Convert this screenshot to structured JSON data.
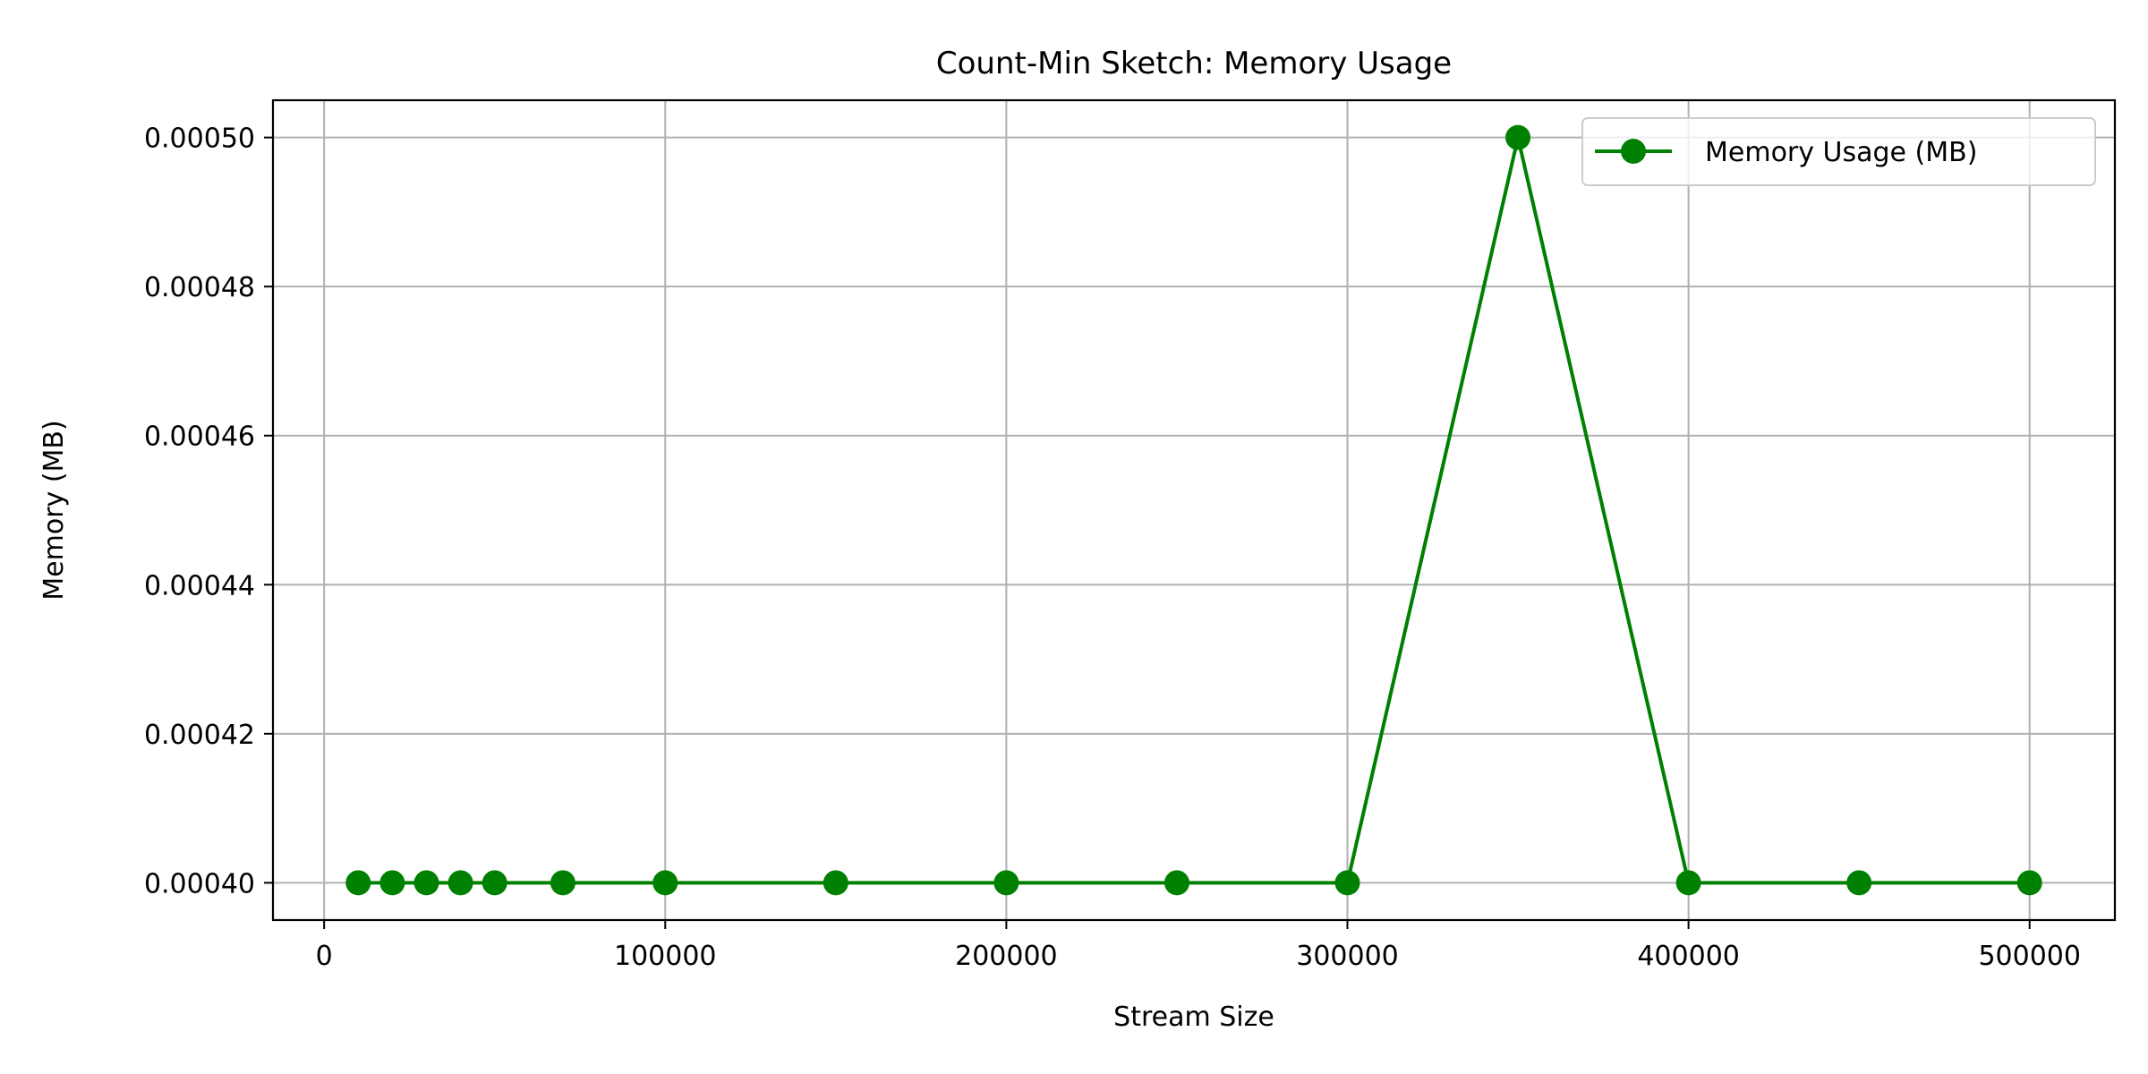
{
  "chart_data": {
    "type": "line",
    "title": "Count-Min Sketch: Memory Usage",
    "xlabel": "Stream Size",
    "ylabel": "Memory (MB)",
    "xlim": [
      -15000,
      525000
    ],
    "ylim": [
      0.000395,
      0.000505
    ],
    "xticks": [
      0,
      100000,
      200000,
      300000,
      400000,
      500000
    ],
    "xtick_labels": [
      "0",
      "100000",
      "200000",
      "300000",
      "400000",
      "500000"
    ],
    "yticks": [
      0.0004,
      0.00042,
      0.00044,
      0.00046,
      0.00048,
      0.0005
    ],
    "ytick_labels": [
      "0.00040",
      "0.00042",
      "0.00044",
      "0.00046",
      "0.00048",
      "0.00050"
    ],
    "grid": true,
    "legend_position": "top-right",
    "series": [
      {
        "name": "Memory Usage (MB)",
        "color": "#008000",
        "marker": "circle",
        "x": [
          10000,
          20000,
          30000,
          40000,
          50000,
          70000,
          100000,
          150000,
          200000,
          250000,
          300000,
          350000,
          400000,
          450000,
          500000
        ],
        "y": [
          0.0004,
          0.0004,
          0.0004,
          0.0004,
          0.0004,
          0.0004,
          0.0004,
          0.0004,
          0.0004,
          0.0004,
          0.0004,
          0.0005,
          0.0004,
          0.0004,
          0.0004
        ]
      }
    ]
  }
}
